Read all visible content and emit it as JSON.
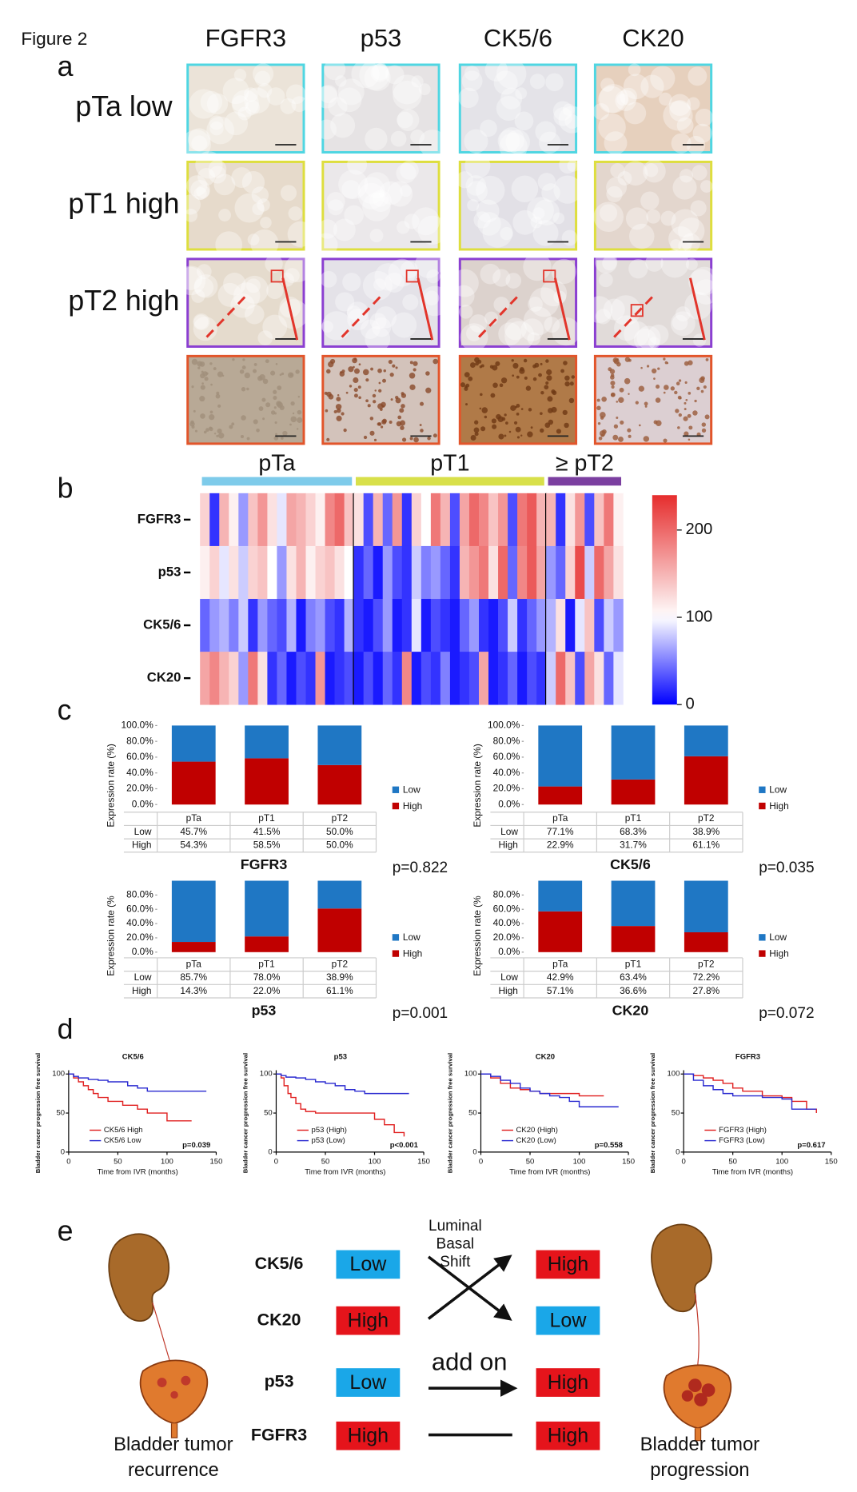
{
  "figure_label": "Figure 2",
  "panel_labels": [
    "a",
    "b",
    "c",
    "d",
    "e"
  ],
  "panel_a": {
    "markers": [
      "FGFR3",
      "p53",
      "CK5/6",
      "CK20"
    ],
    "rows": [
      {
        "label": "pTa low",
        "border": "#4fd6e2",
        "tones": [
          "#ebe3d8",
          "#e6e3e4",
          "#e4e3e8",
          "#e6d0bd"
        ]
      },
      {
        "label": "pT1 high",
        "border": "#dede3e",
        "tones": [
          "#e6dacb",
          "#ebe8ea",
          "#e2e0e6",
          "#e3d6cd"
        ]
      },
      {
        "label": "pT2 high",
        "border": "#8b3fd1",
        "tones": [
          "#e5dbcd",
          "#e4e2e8",
          "#dcd2cd",
          "#e1dbd9"
        ]
      }
    ],
    "zoom_row": {
      "border": "#e2552b",
      "tones": [
        "#b8a996",
        "#d3c3bb",
        "#b07a48",
        "#dccfd2"
      ],
      "speckle": [
        "#a08e7a",
        "#8a4a2a",
        "#6e3814",
        "#9a5a3a"
      ]
    }
  },
  "chart_data": [
    {
      "type": "heatmap",
      "rows": [
        "FGFR3",
        "p53",
        "CK5/6",
        "CK20"
      ],
      "groups": [
        {
          "name": "pTa",
          "color": "#7ecbea",
          "values": [
            [
              130,
              20,
              150,
              110,
              60,
              140,
              170,
              120,
              90,
              160,
              150,
              130,
              110,
              180,
              200,
              140
            ],
            [
              110,
              130,
              90,
              120,
              80,
              130,
              140,
              100,
              60,
              120,
              150,
              110,
              130,
              140,
              120,
              100
            ],
            [
              40,
              60,
              70,
              50,
              80,
              20,
              60,
              40,
              30,
              70,
              10,
              50,
              60,
              30,
              20,
              70
            ],
            [
              160,
              180,
              150,
              130,
              60,
              190,
              120,
              20,
              40,
              10,
              30,
              20,
              170,
              10,
              20,
              30
            ]
          ]
        },
        {
          "name": "pT1",
          "color": "#d8e04a",
          "values": [
            [
              120,
              30,
              150,
              40,
              170,
              20,
              130,
              100,
              190,
              150,
              30,
              160,
              200,
              180,
              140,
              170,
              30,
              190,
              210,
              150
            ],
            [
              20,
              40,
              10,
              60,
              30,
              20,
              80,
              50,
              60,
              40,
              20,
              150,
              170,
              190,
              120,
              200,
              40,
              180,
              210,
              160
            ],
            [
              20,
              10,
              30,
              60,
              10,
              20,
              90,
              10,
              30,
              20,
              10,
              40,
              60,
              20,
              10,
              30,
              80,
              20,
              40,
              60
            ],
            [
              10,
              30,
              10,
              40,
              20,
              180,
              10,
              30,
              20,
              50,
              10,
              20,
              30,
              160,
              10,
              20,
              40,
              10,
              30,
              20
            ]
          ]
        },
        {
          "name": "≥ pT2",
          "color": "#7b3fa0",
          "values": [
            [
              150,
              20,
              120,
              170,
              30,
              140,
              190,
              110
            ],
            [
              60,
              40,
              130,
              220,
              80,
              200,
              160,
              120
            ],
            [
              70,
              120,
              10,
              90,
              140,
              30,
              80,
              60
            ],
            [
              80,
              200,
              140,
              30,
              160,
              120,
              40,
              90
            ]
          ]
        }
      ],
      "clim": [
        0,
        240
      ],
      "cticks": [
        0,
        100,
        200
      ]
    },
    {
      "type": "bar",
      "title": "FGFR3",
      "ylabel": "Expression rate (%)",
      "categories": [
        "pTa",
        "pT1",
        "pT2"
      ],
      "series": [
        {
          "name": "Low",
          "color": "#1f77c4",
          "values": [
            45.7,
            41.5,
            50.0
          ],
          "value_labels": [
            "45.7%",
            "41.5%",
            "50.0%"
          ]
        },
        {
          "name": "High",
          "color": "#c00000",
          "values": [
            54.3,
            58.5,
            50.0
          ],
          "value_labels": [
            "54.3%",
            "58.5%",
            "50.0%"
          ]
        }
      ],
      "ylim": [
        0,
        100
      ],
      "yticks": [
        {
          "value": 0,
          "label": "0.0%"
        },
        {
          "value": 20,
          "label": "20.0%"
        },
        {
          "value": 40,
          "label": "40.0%"
        },
        {
          "value": 60,
          "label": "60.0%"
        },
        {
          "value": 80,
          "label": "80.0%"
        },
        {
          "value": 100,
          "label": "100.0%"
        }
      ],
      "annotation": "p=0.822",
      "annotation_color": "#111111"
    },
    {
      "type": "bar",
      "title": "CK5/6",
      "ylabel": "Expression rate (%)",
      "categories": [
        "pTa",
        "pT1",
        "pT2"
      ],
      "series": [
        {
          "name": "Low",
          "color": "#1f77c4",
          "values": [
            77.1,
            68.3,
            38.9
          ],
          "value_labels": [
            "77.1%",
            "68.3%",
            "38.9%"
          ]
        },
        {
          "name": "High",
          "color": "#c00000",
          "values": [
            22.9,
            31.7,
            61.1
          ],
          "value_labels": [
            "22.9%",
            "31.7%",
            "61.1%"
          ]
        }
      ],
      "ylim": [
        0,
        100
      ],
      "yticks": [
        {
          "value": 0,
          "label": "0.0%"
        },
        {
          "value": 20,
          "label": "20.0%"
        },
        {
          "value": 40,
          "label": "40.0%"
        },
        {
          "value": 60,
          "label": "60.0%"
        },
        {
          "value": 80,
          "label": "80.0%"
        },
        {
          "value": 100,
          "label": "100.0%"
        }
      ],
      "annotation": "p=0.035",
      "annotation_color": "#e8401c"
    },
    {
      "type": "bar",
      "title": "p53",
      "ylabel": "Expression rate (%",
      "categories": [
        "pTa",
        "pT1",
        "pT2"
      ],
      "series": [
        {
          "name": "Low",
          "color": "#1f77c4",
          "values": [
            85.7,
            78.0,
            38.9
          ],
          "value_labels": [
            "85.7%",
            "78.0%",
            "38.9%"
          ]
        },
        {
          "name": "High",
          "color": "#c00000",
          "values": [
            14.3,
            22.0,
            61.1
          ],
          "value_labels": [
            "14.3%",
            "22.0%",
            "61.1%"
          ]
        }
      ],
      "ylim": [
        0,
        100
      ],
      "yticks": [
        {
          "value": 0,
          "label": "0.0%"
        },
        {
          "value": 20,
          "label": "20.0%"
        },
        {
          "value": 40,
          "label": "40.0%"
        },
        {
          "value": 60,
          "label": "60.0%"
        },
        {
          "value": 80,
          "label": "80.0%"
        }
      ],
      "annotation": "p=0.001",
      "annotation_color": "#e8401c"
    },
    {
      "type": "bar",
      "title": "CK20",
      "ylabel": "Expression rate (%",
      "categories": [
        "pTa",
        "pT1",
        "pT2"
      ],
      "series": [
        {
          "name": "Low",
          "color": "#1f77c4",
          "values": [
            42.9,
            63.4,
            72.2
          ],
          "value_labels": [
            "42.9%",
            "63.4%",
            "72.2%"
          ]
        },
        {
          "name": "High",
          "color": "#c00000",
          "values": [
            57.1,
            36.6,
            27.8
          ],
          "value_labels": [
            "57.1%",
            "36.6%",
            "27.8%"
          ]
        }
      ],
      "ylim": [
        0,
        100
      ],
      "yticks": [
        {
          "value": 0,
          "label": "0.0%"
        },
        {
          "value": 20,
          "label": "20.0%"
        },
        {
          "value": 40,
          "label": "40.0%"
        },
        {
          "value": 60,
          "label": "60.0%"
        },
        {
          "value": 80,
          "label": "80.0%"
        }
      ],
      "annotation": "p=0.072",
      "annotation_color": "#111111"
    },
    {
      "type": "line",
      "title": "CK5/6",
      "xlabel": "Time from IVR (months)",
      "ylabel": "Bladder cancer progression free survival",
      "series": [
        {
          "name": "CK5/6 High",
          "color": "#e02020",
          "x": [
            0,
            5,
            10,
            15,
            20,
            25,
            30,
            40,
            50,
            55,
            70,
            80,
            100,
            125
          ],
          "values": [
            100,
            95,
            90,
            85,
            80,
            75,
            70,
            65,
            65,
            60,
            55,
            50,
            40,
            40
          ]
        },
        {
          "name": "CK5/6 Low",
          "color": "#2a2ad0",
          "x": [
            0,
            5,
            10,
            20,
            30,
            40,
            60,
            70,
            80,
            140
          ],
          "values": [
            100,
            97,
            95,
            93,
            92,
            90,
            85,
            82,
            78,
            78
          ]
        }
      ],
      "xlim": [
        0,
        150
      ],
      "xticks": [
        0,
        50,
        100,
        150
      ],
      "ylim": [
        0,
        100
      ],
      "yticks": [
        0,
        50,
        100
      ],
      "annotation": "p=0.039"
    },
    {
      "type": "line",
      "title": "p53",
      "xlabel": "Time from IVR (months)",
      "ylabel": "Bladder cancer progression free survival",
      "series": [
        {
          "name": "p53 (High)",
          "color": "#e02020",
          "x": [
            0,
            5,
            8,
            12,
            15,
            20,
            25,
            30,
            40,
            100,
            110,
            120,
            130
          ],
          "values": [
            100,
            95,
            85,
            75,
            70,
            62,
            55,
            52,
            50,
            42,
            35,
            25,
            20
          ]
        },
        {
          "name": "p53 (Low)",
          "color": "#2a2ad0",
          "x": [
            0,
            5,
            10,
            20,
            30,
            40,
            50,
            60,
            70,
            80,
            90,
            135
          ],
          "values": [
            100,
            98,
            96,
            95,
            93,
            90,
            88,
            85,
            80,
            78,
            75,
            75
          ]
        }
      ],
      "xlim": [
        0,
        150
      ],
      "xticks": [
        0,
        50,
        100,
        150
      ],
      "ylim": [
        0,
        100
      ],
      "yticks": [
        0,
        50,
        100
      ],
      "annotation": "p<0.001"
    },
    {
      "type": "line",
      "title": "CK20",
      "xlabel": "Time from IVR (months)",
      "ylabel": "Bladder cancer progression free survival",
      "series": [
        {
          "name": "CK20 (High)",
          "color": "#e02020",
          "x": [
            0,
            10,
            20,
            30,
            40,
            50,
            60,
            100,
            125
          ],
          "values": [
            100,
            95,
            88,
            82,
            80,
            78,
            75,
            72,
            72
          ]
        },
        {
          "name": "CK20 (Low)",
          "color": "#2a2ad0",
          "x": [
            0,
            10,
            20,
            30,
            40,
            50,
            60,
            70,
            80,
            90,
            100,
            140
          ],
          "values": [
            100,
            97,
            92,
            88,
            82,
            78,
            75,
            72,
            70,
            65,
            58,
            58
          ]
        }
      ],
      "xlim": [
        0,
        150
      ],
      "xticks": [
        0,
        50,
        100,
        150
      ],
      "ylim": [
        0,
        100
      ],
      "yticks": [
        0,
        50,
        100
      ],
      "annotation": "p=0.558"
    },
    {
      "type": "line",
      "title": "FGFR3",
      "xlabel": "Time from IVR (months)",
      "ylabel": "Bladder cancer progression free survival",
      "series": [
        {
          "name": "FGFR3 (High)",
          "color": "#e02020",
          "x": [
            0,
            10,
            20,
            30,
            40,
            50,
            60,
            80,
            100,
            110,
            125,
            135
          ],
          "values": [
            100,
            98,
            95,
            92,
            88,
            82,
            78,
            72,
            70,
            65,
            55,
            50
          ]
        },
        {
          "name": "FGFR3 (Low)",
          "color": "#2a2ad0",
          "x": [
            0,
            10,
            20,
            30,
            40,
            50,
            80,
            100,
            110,
            135
          ],
          "values": [
            100,
            92,
            85,
            80,
            75,
            72,
            70,
            68,
            55,
            55
          ]
        }
      ],
      "xlim": [
        0,
        150
      ],
      "xticks": [
        0,
        50,
        100,
        150
      ],
      "ylim": [
        0,
        100
      ],
      "yticks": [
        0,
        50,
        100
      ],
      "annotation": "p=0.617"
    }
  ],
  "panel_e": {
    "markers": [
      "CK5/6",
      "CK20",
      "p53",
      "FGFR3"
    ],
    "before": [
      {
        "label": "Low",
        "color": "#1aa7e8"
      },
      {
        "label": "High",
        "color": "#e5141b"
      },
      {
        "label": "Low",
        "color": "#1aa7e8"
      },
      {
        "label": "High",
        "color": "#e5141b"
      }
    ],
    "after": [
      {
        "label": "High",
        "color": "#e5141b"
      },
      {
        "label": "Low",
        "color": "#1aa7e8"
      },
      {
        "label": "High",
        "color": "#e5141b"
      },
      {
        "label": "High",
        "color": "#e5141b"
      }
    ],
    "shift_label": [
      "Luminal",
      "Basal",
      "Shift"
    ],
    "add_on": "add on",
    "left_caption": [
      "Bladder tumor",
      "recurrence"
    ],
    "right_caption": [
      "Bladder tumor",
      "progression"
    ]
  }
}
